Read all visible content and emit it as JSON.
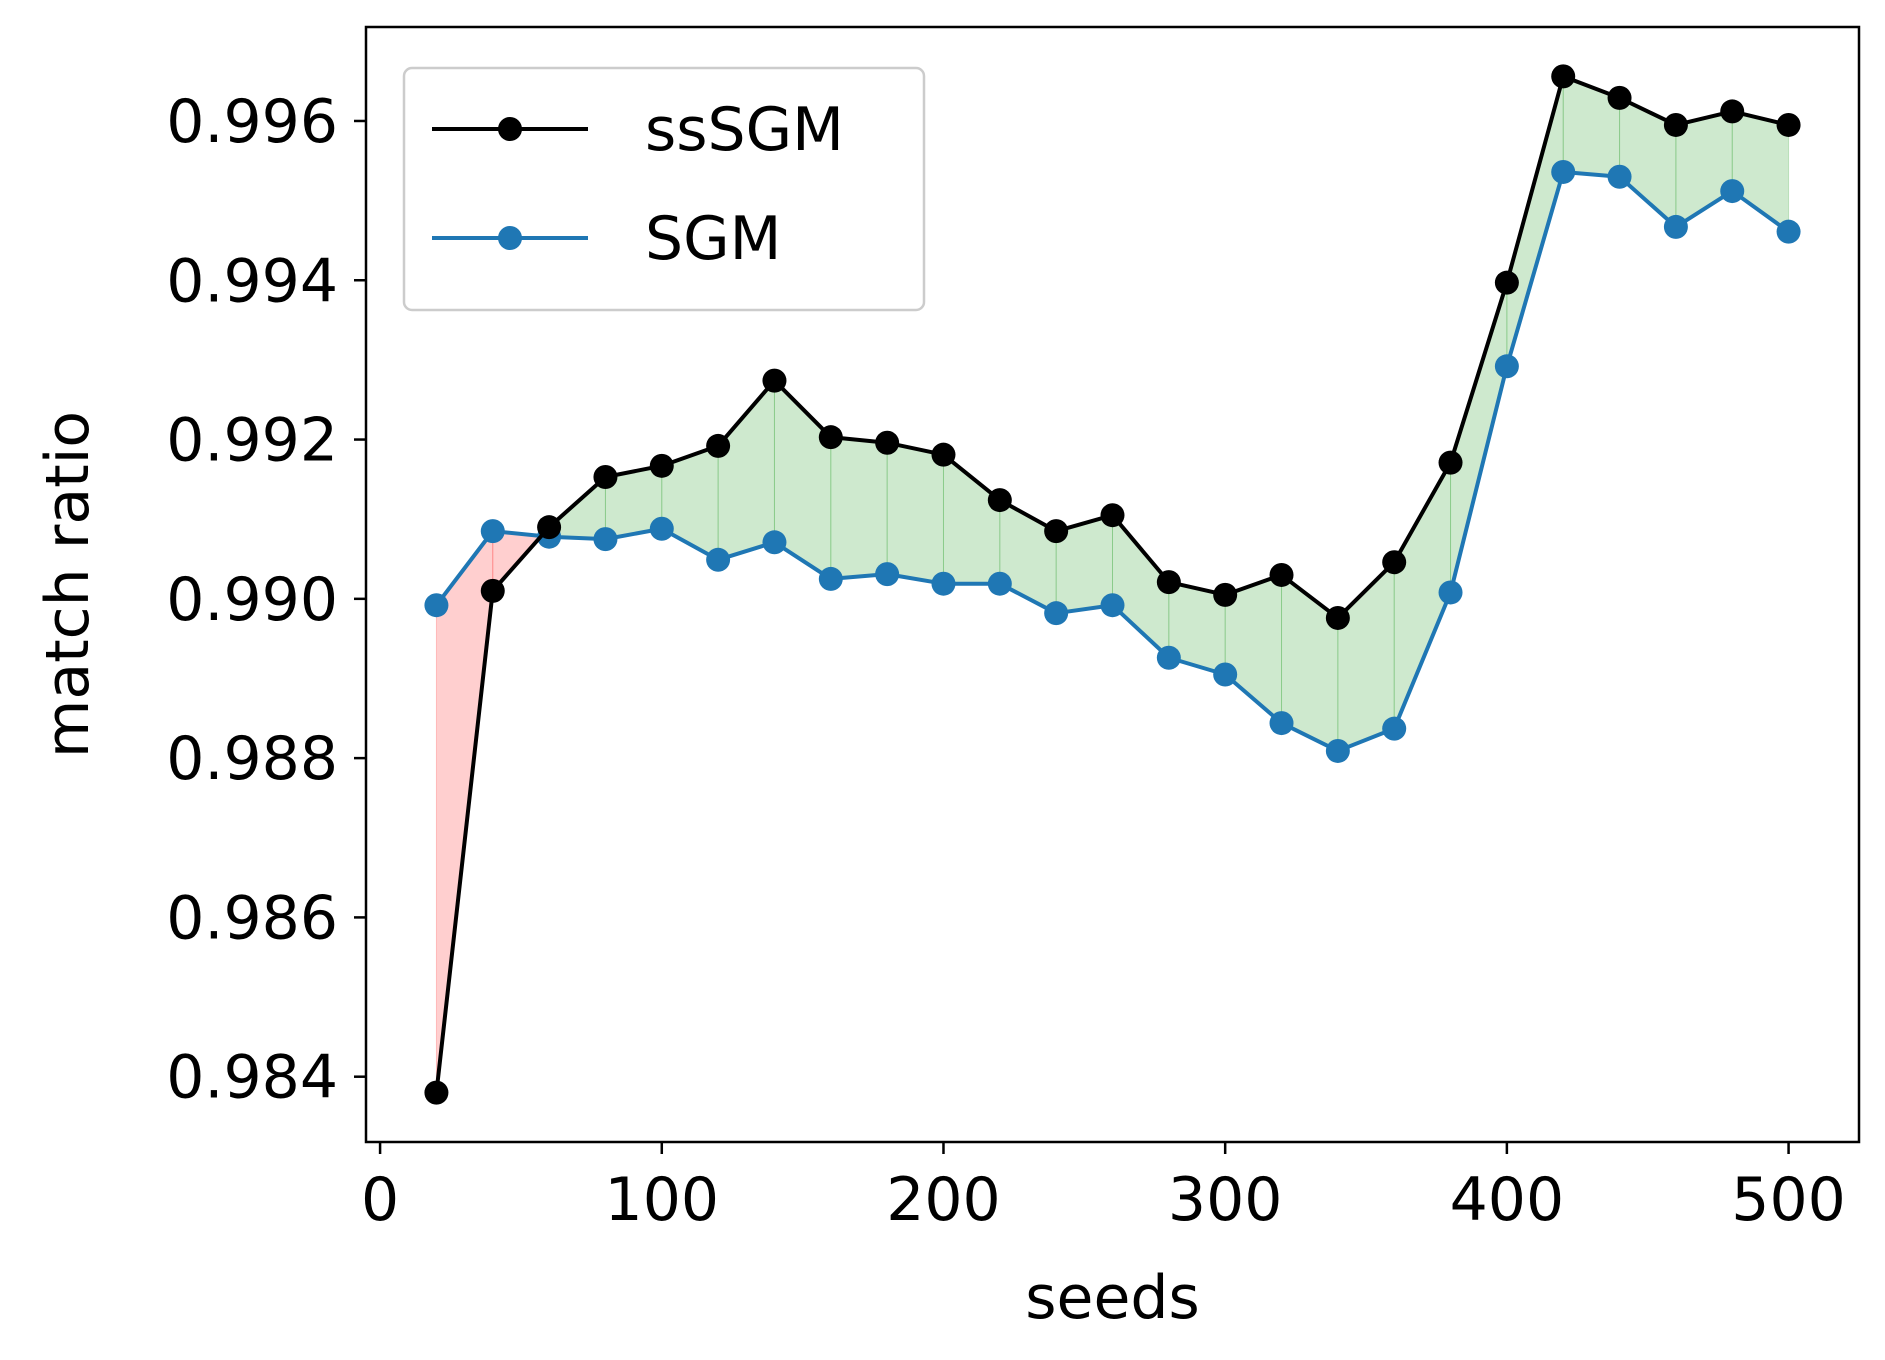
{
  "chart_data": {
    "type": "line",
    "title": "",
    "xlabel": "seeds",
    "ylabel": "match ratio",
    "xlim": [
      -5,
      525
    ],
    "ylim": [
      0.98318,
      0.99718
    ],
    "x_ticks": [
      0,
      100,
      200,
      300,
      400,
      500
    ],
    "y_ticks": [
      0.984,
      0.986,
      0.988,
      0.99,
      0.992,
      0.994,
      0.996
    ],
    "x_tick_labels": [
      "0",
      "100",
      "200",
      "300",
      "400",
      "500"
    ],
    "y_tick_labels": [
      "0.984",
      "0.986",
      "0.988",
      "0.990",
      "0.992",
      "0.994",
      "0.996"
    ],
    "grid": false,
    "legend_position": "upper-left",
    "x": [
      20,
      40,
      60,
      80,
      100,
      120,
      140,
      160,
      180,
      200,
      220,
      240,
      260,
      280,
      300,
      320,
      340,
      360,
      380,
      400,
      420,
      440,
      460,
      480,
      500
    ],
    "series": [
      {
        "name": "ssSGM",
        "color": "#000000",
        "values": [
          0.9838,
          0.9901,
          0.9909,
          0.99153,
          0.99167,
          0.99192,
          0.99274,
          0.99203,
          0.99196,
          0.99181,
          0.99124,
          0.99085,
          0.99105,
          0.99021,
          0.99005,
          0.9903,
          0.98976,
          0.99046,
          0.99171,
          0.99397,
          0.99656,
          0.99629,
          0.99595,
          0.99612,
          0.99595
        ]
      },
      {
        "name": "SGM",
        "color": "#1f77b4",
        "values": [
          0.98992,
          0.99085,
          0.99078,
          0.99075,
          0.99088,
          0.99049,
          0.99071,
          0.99025,
          0.99031,
          0.99019,
          0.99019,
          0.98982,
          0.98992,
          0.98926,
          0.98905,
          0.98844,
          0.98809,
          0.98837,
          0.99008,
          0.99292,
          0.99536,
          0.9953,
          0.99467,
          0.99512,
          0.99461
        ]
      }
    ],
    "fill_colors": {
      "ssSGM_above": "#2ca02c",
      "SGM_above": "#ff0000"
    }
  }
}
